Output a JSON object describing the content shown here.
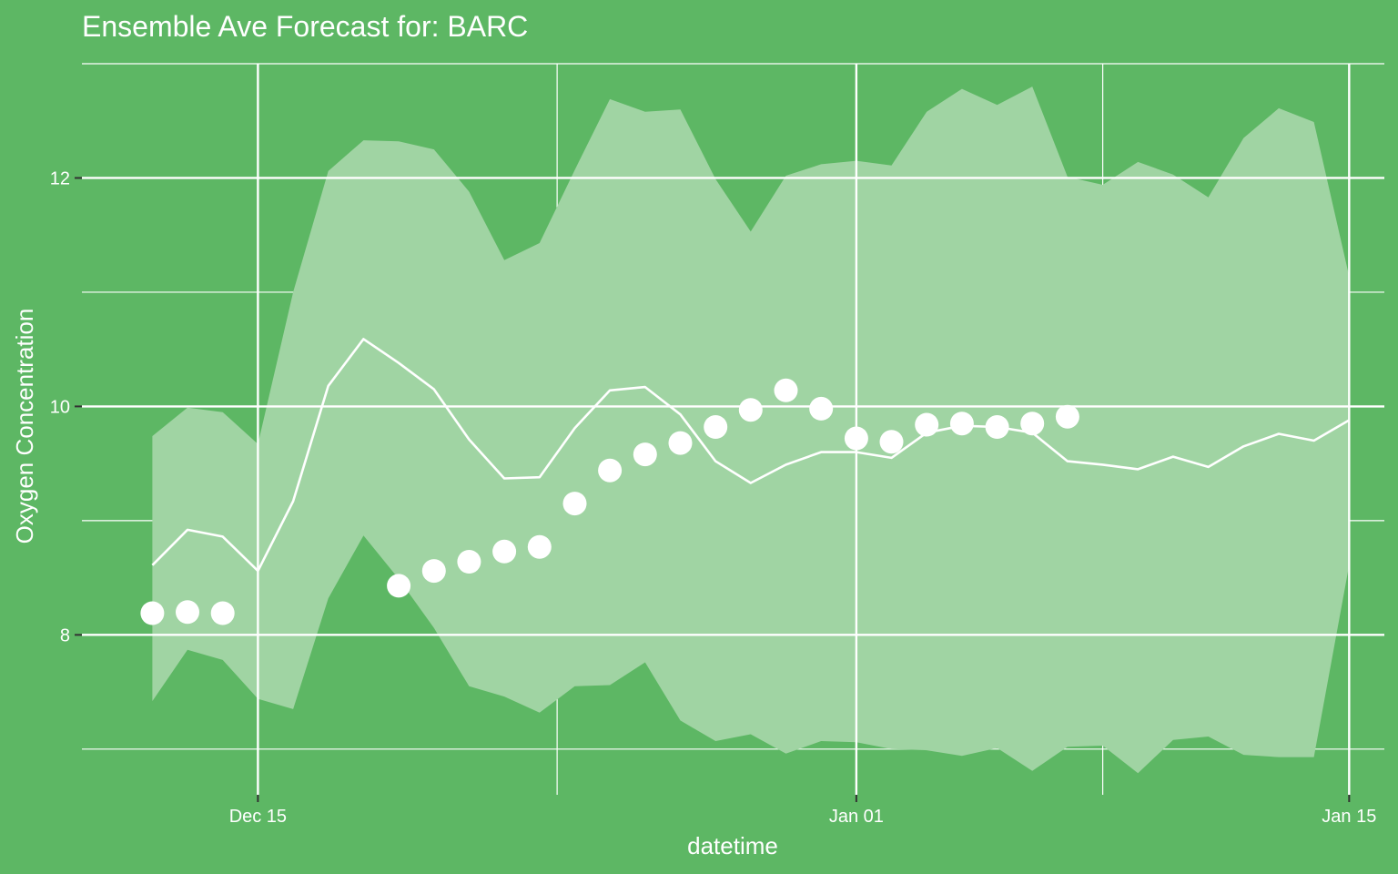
{
  "chart_data": {
    "type": "line",
    "title": "Ensemble Ave Forecast for: BARC",
    "xlabel": "datetime",
    "ylabel": "Oxygen Concentration",
    "x_ticks": [
      "Dec 15",
      "Jan 01",
      "Jan 15"
    ],
    "y_ticks": [
      "8",
      "10",
      "12"
    ],
    "x_tick_values": [
      "2023-12-15",
      "2024-01-01",
      "2024-01-15"
    ],
    "y_tick_values": [
      8,
      10,
      12
    ],
    "xlim": [
      "2023-12-10",
      "2024-01-16"
    ],
    "ylim": [
      6.6,
      13.0
    ],
    "grid": true,
    "series": [
      {
        "values": [
          {
            "x": "2023-12-12",
            "lower": 7.42,
            "mean": 8.61,
            "upper": 9.74
          },
          {
            "x": "2023-12-13",
            "lower": 7.87,
            "mean": 8.92,
            "upper": 9.99
          },
          {
            "x": "2023-12-14",
            "lower": 7.78,
            "mean": 8.86,
            "upper": 9.95
          },
          {
            "x": "2023-12-15",
            "lower": 7.44,
            "mean": 8.56,
            "upper": 9.67
          },
          {
            "x": "2023-12-16",
            "lower": 7.35,
            "mean": 9.17,
            "upper": 11.0
          },
          {
            "x": "2023-12-17",
            "lower": 8.32,
            "mean": 10.18,
            "upper": 12.06
          },
          {
            "x": "2023-12-18",
            "lower": 8.87,
            "mean": 10.59,
            "upper": 12.33
          },
          {
            "x": "2023-12-19",
            "lower": 8.49,
            "mean": 10.38,
            "upper": 12.32
          },
          {
            "x": "2023-12-20",
            "lower": 8.06,
            "mean": 10.15,
            "upper": 12.25
          },
          {
            "x": "2023-12-21",
            "lower": 7.55,
            "mean": 9.71,
            "upper": 11.88
          },
          {
            "x": "2023-12-22",
            "lower": 7.46,
            "mean": 9.37,
            "upper": 11.28
          },
          {
            "x": "2023-12-23",
            "lower": 7.32,
            "mean": 9.38,
            "upper": 11.43
          },
          {
            "x": "2023-12-24",
            "lower": 7.55,
            "mean": 9.81,
            "upper": 12.07
          },
          {
            "x": "2023-12-25",
            "lower": 7.56,
            "mean": 10.14,
            "upper": 12.69
          },
          {
            "x": "2023-12-26",
            "lower": 7.76,
            "mean": 10.17,
            "upper": 12.58
          },
          {
            "x": "2023-12-27",
            "lower": 7.25,
            "mean": 9.93,
            "upper": 12.6
          },
          {
            "x": "2023-12-28",
            "lower": 7.07,
            "mean": 9.52,
            "upper": 11.99
          },
          {
            "x": "2023-12-29",
            "lower": 7.13,
            "mean": 9.33,
            "upper": 11.53
          },
          {
            "x": "2023-12-30",
            "lower": 6.96,
            "mean": 9.49,
            "upper": 12.02
          },
          {
            "x": "2023-12-31",
            "lower": 7.07,
            "mean": 9.6,
            "upper": 12.12
          },
          {
            "x": "2024-01-01",
            "lower": 7.06,
            "mean": 9.6,
            "upper": 12.15
          },
          {
            "x": "2024-01-02",
            "lower": 7.0,
            "mean": 9.55,
            "upper": 12.11
          },
          {
            "x": "2024-01-03",
            "lower": 6.99,
            "mean": 9.77,
            "upper": 12.58
          },
          {
            "x": "2024-01-04",
            "lower": 6.94,
            "mean": 9.83,
            "upper": 12.78
          },
          {
            "x": "2024-01-05",
            "lower": 7.01,
            "mean": 9.82,
            "upper": 12.64
          },
          {
            "x": "2024-01-06",
            "lower": 6.81,
            "mean": 9.77,
            "upper": 12.8
          },
          {
            "x": "2024-01-07",
            "lower": 7.02,
            "mean": 9.52,
            "upper": 12.01
          },
          {
            "x": "2024-01-08",
            "lower": 7.03,
            "mean": 9.49,
            "upper": 11.94
          },
          {
            "x": "2024-01-09",
            "lower": 6.79,
            "mean": 9.45,
            "upper": 12.14
          },
          {
            "x": "2024-01-10",
            "lower": 7.08,
            "mean": 9.56,
            "upper": 12.03
          },
          {
            "x": "2024-01-11",
            "lower": 7.11,
            "mean": 9.47,
            "upper": 11.83
          },
          {
            "x": "2024-01-12",
            "lower": 6.95,
            "mean": 9.65,
            "upper": 12.35
          },
          {
            "x": "2024-01-13",
            "lower": 6.93,
            "mean": 9.76,
            "upper": 12.61
          },
          {
            "x": "2024-01-14",
            "lower": 6.93,
            "mean": 9.7,
            "upper": 12.49
          },
          {
            "x": "2024-01-15",
            "lower": 8.61,
            "mean": 9.88,
            "upper": 11.14
          }
        ]
      },
      {
        "values": [
          {
            "x": "2023-12-12",
            "y": 8.19
          },
          {
            "x": "2023-12-13",
            "y": 8.2
          },
          {
            "x": "2023-12-14",
            "y": 8.19
          },
          {
            "x": "2023-12-19",
            "y": 8.43
          },
          {
            "x": "2023-12-20",
            "y": 8.56
          },
          {
            "x": "2023-12-21",
            "y": 8.64
          },
          {
            "x": "2023-12-22",
            "y": 8.73
          },
          {
            "x": "2023-12-23",
            "y": 8.77
          },
          {
            "x": "2023-12-24",
            "y": 9.15
          },
          {
            "x": "2023-12-25",
            "y": 9.44
          },
          {
            "x": "2023-12-26",
            "y": 9.58
          },
          {
            "x": "2023-12-27",
            "y": 9.68
          },
          {
            "x": "2023-12-28",
            "y": 9.82
          },
          {
            "x": "2023-12-29",
            "y": 9.97
          },
          {
            "x": "2023-12-30",
            "y": 10.14
          },
          {
            "x": "2023-12-31",
            "y": 9.98
          },
          {
            "x": "2024-01-01",
            "y": 9.72
          },
          {
            "x": "2024-01-02",
            "y": 9.69
          },
          {
            "x": "2024-01-03",
            "y": 9.84
          },
          {
            "x": "2024-01-04",
            "y": 9.85
          },
          {
            "x": "2024-01-05",
            "y": 9.82
          },
          {
            "x": "2024-01-06",
            "y": 9.85
          },
          {
            "x": "2024-01-07",
            "y": 9.91
          }
        ]
      }
    ]
  },
  "colors": {
    "background": "#5db764",
    "band": "#a0d4a3",
    "foreground": "#ffffff"
  }
}
